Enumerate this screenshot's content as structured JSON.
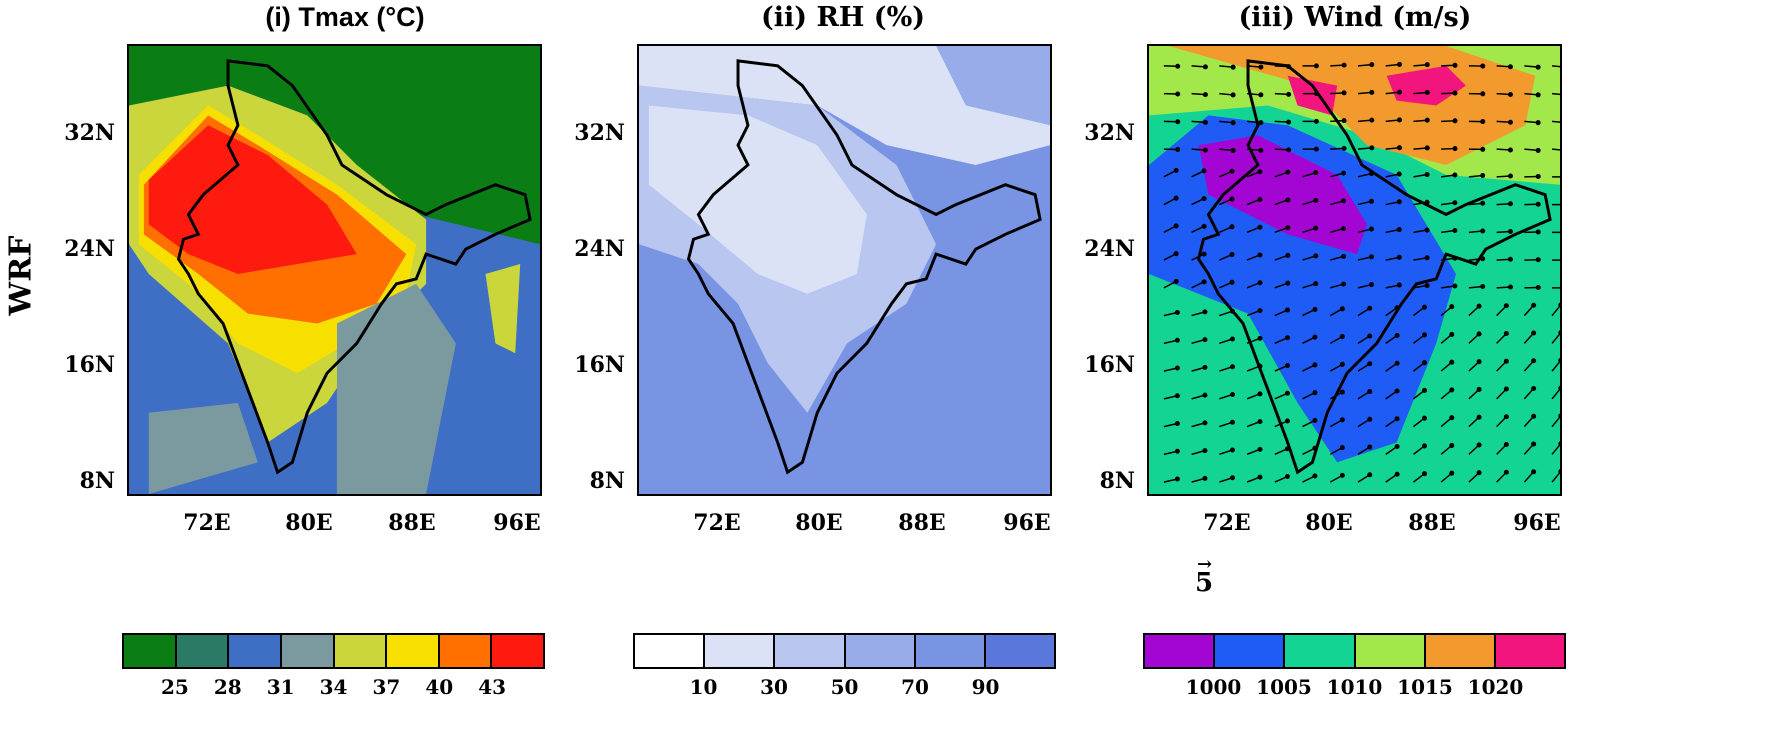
{
  "row_label": "WRF",
  "panels": [
    {
      "title": "(i) Tmax (°C)"
    },
    {
      "title": "(ii) RH (%)"
    },
    {
      "title": "(iii) Wind (m/s)"
    }
  ],
  "lat_ticks": [
    "32N",
    "24N",
    "16N",
    "8N"
  ],
  "lon_ticks": [
    "72E",
    "80E",
    "88E",
    "96E"
  ],
  "colorbars": [
    {
      "colors": [
        "#0a7d14",
        "#2a7a66",
        "#3f6fc4",
        "#7a9aa0",
        "#cbd63c",
        "#f7e000",
        "#ff7000",
        "#ff1a10"
      ],
      "labels": [
        "25",
        "28",
        "31",
        "34",
        "37",
        "40",
        "43"
      ]
    },
    {
      "colors": [
        "#ffffff",
        "#dbe2f6",
        "#b9c6f0",
        "#98acea",
        "#7a94e4",
        "#5a78dc"
      ],
      "labels": [
        "10",
        "30",
        "50",
        "70",
        "90"
      ]
    },
    {
      "colors": [
        "#a306d2",
        "#1f5cf5",
        "#13d492",
        "#a3e84a",
        "#f29a2e",
        "#f2157d"
      ],
      "labels": [
        "1000",
        "1005",
        "1010",
        "1015",
        "1020"
      ]
    }
  ],
  "reference_vector": "5",
  "icons": [
    "vector-arrow-icon"
  ]
}
